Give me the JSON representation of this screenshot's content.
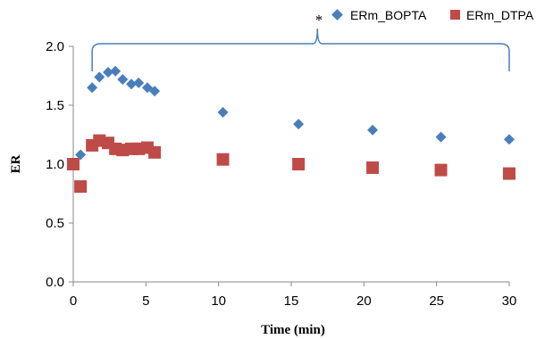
{
  "chart_data": {
    "type": "scatter",
    "title": "",
    "xlabel": "Time (min)",
    "ylabel": "ER",
    "xlim": [
      0,
      30
    ],
    "ylim": [
      0,
      2
    ],
    "xticks": [
      0,
      5,
      10,
      15,
      20,
      25,
      30
    ],
    "yticks": [
      0,
      0.5,
      1,
      1.5,
      2
    ],
    "xtick_labels": [
      "0",
      "5",
      "10",
      "15",
      "20",
      "25",
      "30"
    ],
    "ytick_labels": [
      "0.0",
      "0.5",
      "1.0",
      "1.5",
      "2.0"
    ],
    "grid": false,
    "legend_position": "top-right",
    "annotation": "*",
    "series": [
      {
        "name": "ERm_BOPTA",
        "marker": "diamond",
        "color": "#4a7ebb",
        "x": [
          0.5,
          1.3,
          1.8,
          2.4,
          2.9,
          3.4,
          4.0,
          4.5,
          5.1,
          5.6,
          10.3,
          15.5,
          20.6,
          25.3,
          30.0
        ],
        "y": [
          1.08,
          1.65,
          1.74,
          1.78,
          1.79,
          1.72,
          1.68,
          1.69,
          1.65,
          1.62,
          1.44,
          1.34,
          1.29,
          1.23,
          1.21
        ]
      },
      {
        "name": "ERm_DTPA",
        "marker": "square",
        "color": "#be4b48",
        "x": [
          0.0,
          0.5,
          1.3,
          1.8,
          2.4,
          2.9,
          3.4,
          4.0,
          4.5,
          5.1,
          5.6,
          10.3,
          15.5,
          20.6,
          25.3,
          30.0
        ],
        "y": [
          1.0,
          0.81,
          1.16,
          1.2,
          1.18,
          1.13,
          1.12,
          1.13,
          1.13,
          1.14,
          1.1,
          1.04,
          1.0,
          0.97,
          0.95,
          0.92
        ]
      }
    ]
  }
}
